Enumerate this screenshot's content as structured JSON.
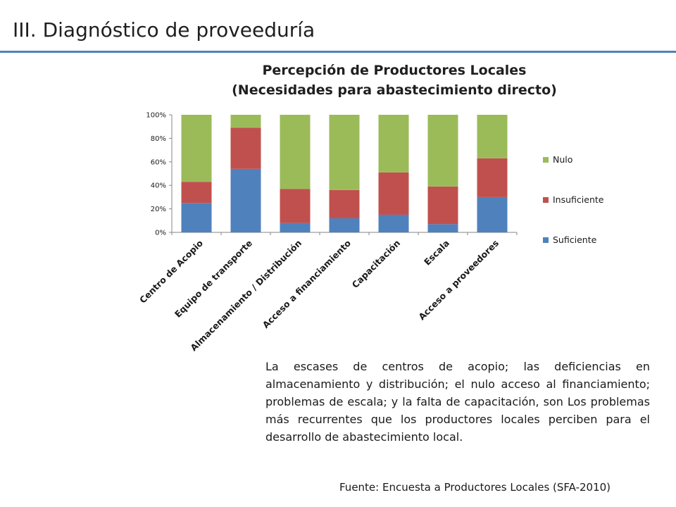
{
  "slide": {
    "title": "III. Diagnóstico de proveeduría",
    "body_text": "La escases de centros de acopio; las deficiencias en almacenamiento y distribución; el nulo acceso al financiamiento; problemas de escala; y la falta de capacitación, son Los problemas más recurrentes que los productores locales perciben para el desarrollo de abastecimiento local.",
    "source": "Fuente: Encuesta a Productores Locales (SFA-2010)",
    "accent_color": "#4f81bd"
  },
  "chart_data": {
    "type": "bar",
    "stacked": true,
    "normalized": true,
    "title_line1": "Percepción de Productores Locales",
    "title_line2": "(Necesidades para abastecimiento directo)",
    "categories": [
      "Centro de Acopio",
      "Equipo de transporte",
      "Almacenamiento / Distribución",
      "Acceso a financiamiento",
      "Capacitación",
      "Escala",
      "Acceso a proveedores"
    ],
    "series": [
      {
        "name": "Suficiente",
        "color": "#4f81bd",
        "values": [
          25,
          54,
          8,
          12,
          15,
          7,
          30
        ]
      },
      {
        "name": "Insuficiente",
        "color": "#c0504d",
        "values": [
          18,
          35,
          29,
          24,
          36,
          32,
          33
        ]
      },
      {
        "name": "Nulo",
        "color": "#9bbb59",
        "values": [
          57,
          11,
          63,
          64,
          49,
          61,
          37
        ]
      }
    ],
    "y_ticks": [
      "0%",
      "20%",
      "40%",
      "60%",
      "80%",
      "100%"
    ],
    "ylim": [
      0,
      100
    ],
    "grid": false,
    "legend_position": "right"
  }
}
